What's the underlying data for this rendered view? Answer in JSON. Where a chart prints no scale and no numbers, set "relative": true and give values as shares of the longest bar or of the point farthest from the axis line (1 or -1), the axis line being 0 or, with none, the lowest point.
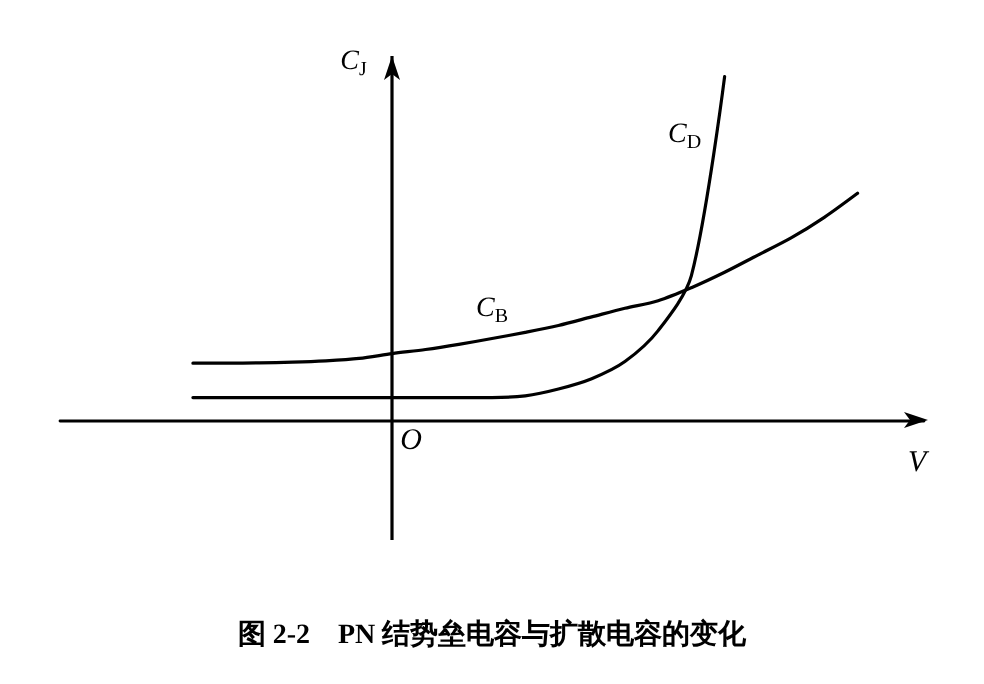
{
  "chart_data": {
    "type": "line",
    "relative": true,
    "title": "图 2-2　PN 结势垒电容与扩散电容的变化",
    "xlabel": "V",
    "ylabel": "C$_{J}$",
    "annotations": [
      "O"
    ],
    "categories": [
      null,
      null,
      null,
      null,
      null,
      null,
      null,
      null,
      null,
      null,
      null,
      null,
      null,
      null,
      null,
      null,
      null,
      null,
      null,
      null,
      null
    ],
    "series": [
      {
        "name": "C$_{B}$",
        "color": "#000000",
        "values": [
          0.165,
          0.165,
          0.166,
          0.168,
          0.172,
          0.179,
          0.193,
          0.205,
          0.22,
          0.237,
          0.255,
          0.275,
          0.3,
          0.325,
          0.347,
          0.385,
          0.43,
          0.48,
          0.53,
          0.59,
          0.66
        ]
      },
      {
        "name": "C$_{D}$",
        "color": "#000000",
        "values": [
          0.065,
          0.065,
          0.065,
          0.065,
          0.065,
          0.065,
          0.065,
          0.065,
          0.065,
          0.065,
          0.07,
          0.09,
          0.12,
          0.17,
          0.26,
          0.42,
          1,
          null,
          null,
          null,
          null
        ]
      }
    ],
    "marker": "none",
    "line_style": "solid",
    "grid": false
  }
}
